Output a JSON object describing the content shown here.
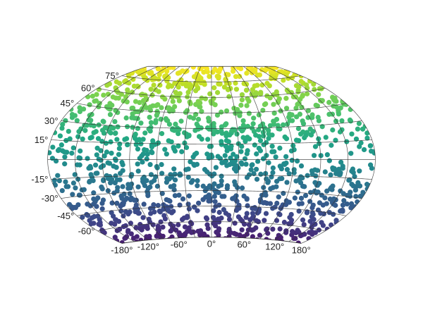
{
  "chart_data": {
    "type": "scatter",
    "projection": "winkel-tripel",
    "title": "",
    "xlabel": "",
    "ylabel": "",
    "grid": true,
    "legend": "none",
    "colormap": "viridis",
    "color_by": "latitude",
    "xlim": [
      -180,
      180
    ],
    "ylim": [
      -75,
      90
    ],
    "point_count": 1500,
    "point_distribution": "random uniform across the globe, denser near the poles as drawn",
    "lon_gridlines": [
      -180,
      -150,
      -120,
      -90,
      -60,
      -30,
      0,
      30,
      60,
      90,
      120,
      150,
      180
    ],
    "lat_gridlines": [
      -75,
      -60,
      -45,
      -30,
      -15,
      0,
      15,
      30,
      45,
      60,
      75
    ],
    "x_tick_labels": [
      {
        "value": -180,
        "label": "-180°"
      },
      {
        "value": -120,
        "label": "-120°"
      },
      {
        "value": -60,
        "label": "-60°"
      },
      {
        "value": 0,
        "label": "0°"
      },
      {
        "value": 60,
        "label": "60°"
      },
      {
        "value": 120,
        "label": "120°"
      },
      {
        "value": 180,
        "label": "180°"
      }
    ],
    "y_tick_labels": [
      {
        "value": 75,
        "label": "75°"
      },
      {
        "value": 60,
        "label": "60°"
      },
      {
        "value": 45,
        "label": "45°"
      },
      {
        "value": 30,
        "label": "30°"
      },
      {
        "value": 15,
        "label": "15°"
      },
      {
        "value": -15,
        "label": "-15°"
      },
      {
        "value": -30,
        "label": "-30°"
      },
      {
        "value": -45,
        "label": "-45°"
      },
      {
        "value": -60,
        "label": "-60°"
      }
    ],
    "colors": {
      "viridis_low": "#440154",
      "viridis_mid": "#21918c",
      "viridis_high": "#fde725",
      "grid": "#333333",
      "labels": "#222222"
    }
  }
}
